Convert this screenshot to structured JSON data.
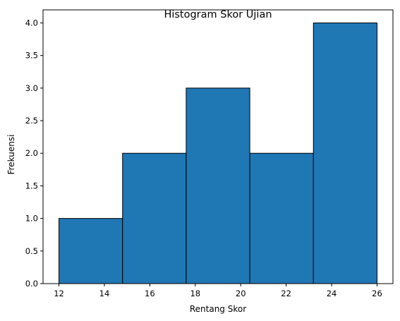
{
  "chart_data": {
    "type": "bar",
    "title": "Histogram Skor Ujian",
    "xlabel": "Rentang Skor",
    "ylabel": "Frekuensi",
    "bins": [
      {
        "start": 12.0,
        "end": 14.8,
        "count": 1
      },
      {
        "start": 14.8,
        "end": 17.6,
        "count": 2
      },
      {
        "start": 17.6,
        "end": 20.4,
        "count": 3
      },
      {
        "start": 20.4,
        "end": 23.2,
        "count": 2
      },
      {
        "start": 23.2,
        "end": 26.0,
        "count": 4
      }
    ],
    "xlim": [
      11.3,
      26.7
    ],
    "ylim": [
      0,
      4.2
    ],
    "xticks": [
      12,
      14,
      16,
      18,
      20,
      22,
      24,
      26
    ],
    "xtick_labels": [
      "12",
      "14",
      "16",
      "18",
      "20",
      "22",
      "24",
      "26"
    ],
    "yticks": [
      0,
      0.5,
      1.0,
      1.5,
      2.0,
      2.5,
      3.0,
      3.5,
      4.0
    ],
    "ytick_labels": [
      "0.0",
      "0.5",
      "1.0",
      "1.5",
      "2.0",
      "2.5",
      "3.0",
      "3.5",
      "4.0"
    ],
    "grid": false,
    "colors": {
      "bar": "#1f77b4",
      "edge": "#000000"
    }
  }
}
